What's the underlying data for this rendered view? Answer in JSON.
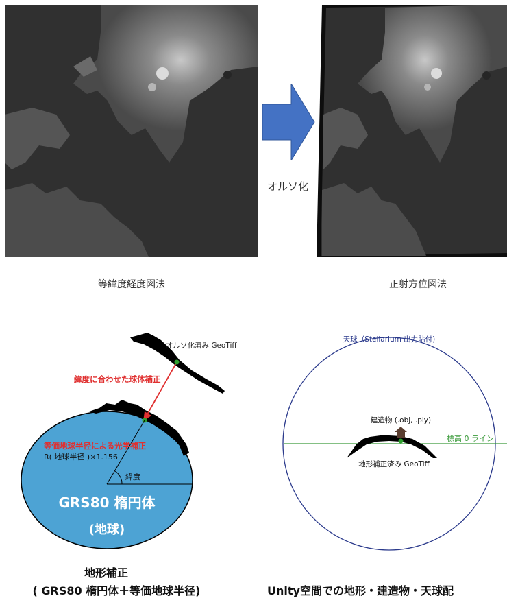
{
  "top": {
    "arrow_label": "オルソ化",
    "left_caption": "等緯度経度図法",
    "right_caption": "正射方位図法"
  },
  "left_diagram": {
    "dem_label": "オルソ化済み GeoTiff",
    "correction_label": "緯度に合わせた球体補正",
    "optical_label": "等価地球半径による光学補正",
    "radius_formula": "R( 地球半径 )×1.156",
    "latitude_label": "緯度",
    "ellipsoid_name": "GRS80 楕円体",
    "ellipsoid_sub": "(地球)",
    "caption_line1": "地形補正",
    "caption_line2": "( GRS80 楕円体＋等価地球半径)"
  },
  "right_diagram": {
    "sky_label": "天球（Stellarium 出力貼付)",
    "building_label": "建造物 (.obj, .ply)",
    "elevation_label": "標高 0 ライン",
    "terrain_label": "地形補正済み GeoTiff",
    "caption": "Unity空間での地形・建造物・天球配"
  },
  "colors": {
    "arrow_fill": "#4472c4",
    "ellipsoid_fill": "#4da3d4",
    "red": "#e03030",
    "green": "#3a9a3a",
    "sky_circle": "#2b3a8c"
  }
}
